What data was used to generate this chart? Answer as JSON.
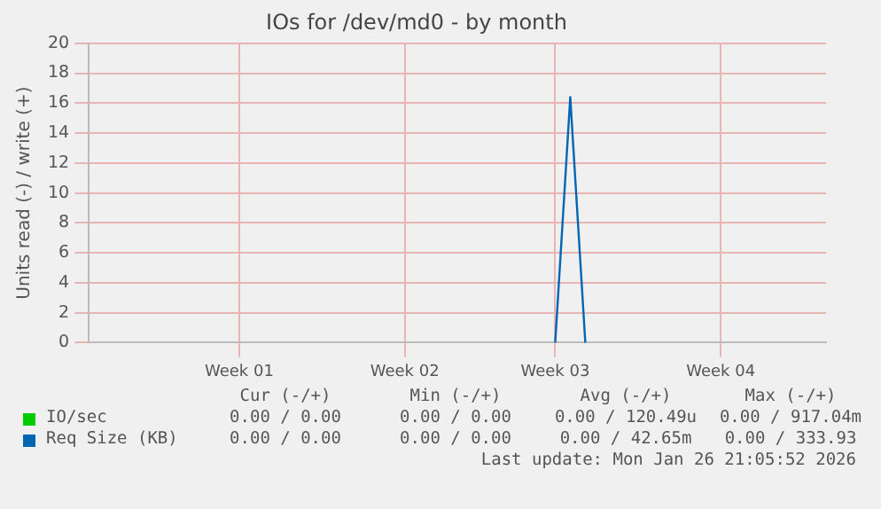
{
  "chart_data": {
    "type": "line",
    "title": "IOs for /dev/md0 - by month",
    "ylabel": "Units read (-) / write (+)",
    "categories": [
      null,
      null,
      null,
      null,
      null,
      null,
      null,
      null,
      null,
      null,
      "Week 01",
      null,
      null,
      null,
      null,
      null,
      null,
      null,
      null,
      null,
      null,
      "Week 02",
      null,
      null,
      null,
      null,
      null,
      null,
      null,
      null,
      null,
      "Week 03",
      null,
      null,
      null,
      null,
      null,
      null,
      null,
      null,
      null,
      null,
      "Week 04",
      null,
      null,
      null,
      null,
      null,
      null,
      null
    ],
    "ylim": [
      0,
      20
    ],
    "yticks": [
      0,
      2,
      4,
      6,
      8,
      10,
      12,
      14,
      16,
      18,
      20
    ],
    "grid": true,
    "legend": "bottom",
    "marker": "none",
    "line_style": "solid",
    "series": [
      {
        "name": "IO/sec",
        "color": "#00cc00",
        "values": [
          null,
          null,
          null,
          null,
          null,
          null,
          null,
          null,
          null,
          null,
          null,
          null,
          null,
          null,
          null,
          null,
          null,
          null,
          null,
          null,
          null,
          null,
          null,
          null,
          null,
          null,
          null,
          null,
          null,
          null,
          null,
          null,
          null,
          null,
          null,
          null,
          null,
          null,
          null,
          null,
          null,
          null,
          null,
          null,
          null,
          null,
          null,
          null,
          null,
          null
        ]
      },
      {
        "name": "Req Size (KB)",
        "color": "#0066b3",
        "values": [
          null,
          null,
          null,
          null,
          null,
          null,
          null,
          null,
          null,
          null,
          null,
          null,
          null,
          null,
          null,
          null,
          null,
          null,
          null,
          null,
          null,
          null,
          null,
          null,
          null,
          null,
          null,
          null,
          null,
          null,
          null,
          0,
          16.4,
          0,
          null,
          null,
          null,
          null,
          null,
          null,
          null,
          null,
          null,
          null,
          null,
          null,
          null,
          null,
          null,
          null
        ]
      }
    ],
    "annotations": [
      "Cur (-/+)",
      "Min (-/+)",
      "Avg (-/+)",
      "Max (-/+)",
      "0.00 / 0.00",
      "0.00 / 0.00",
      "0.00 / 120.49u",
      "0.00 / 917.04m",
      "0.00 / 0.00",
      "0.00 / 0.00",
      "0.00 / 42.65m",
      "0.00 / 333.93",
      "Last update: Mon Jan 26 21:05:52 2026"
    ]
  }
}
